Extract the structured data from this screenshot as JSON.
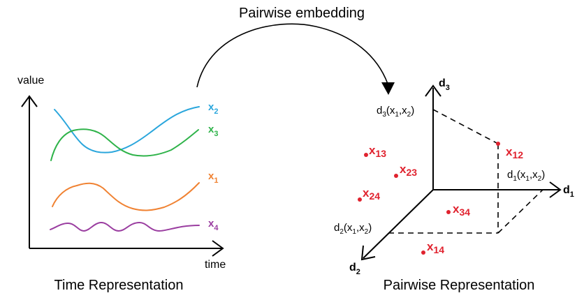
{
  "title": "Pairwise embedding",
  "colors": {
    "x1": "#f08232",
    "x2": "#2aa6dc",
    "x3": "#2fb34a",
    "x4": "#9a3da0",
    "point": "#e0222e",
    "axis": "#000000"
  },
  "left_panel": {
    "caption": "Time Representation",
    "y_axis_label": "value",
    "x_axis_label": "time",
    "series": [
      {
        "base": "x",
        "sub": "2"
      },
      {
        "base": "x",
        "sub": "3"
      },
      {
        "base": "x",
        "sub": "1"
      },
      {
        "base": "x",
        "sub": "4"
      }
    ]
  },
  "right_panel": {
    "caption": "Pairwise Representation",
    "axes": [
      {
        "base": "d",
        "sub": "1"
      },
      {
        "base": "d",
        "sub": "2"
      },
      {
        "base": "d",
        "sub": "3"
      }
    ],
    "projections": [
      {
        "fn": "d",
        "fnsub": "3",
        "a": "x",
        "asub": "1",
        "b": "x",
        "bsub": "2"
      },
      {
        "fn": "d",
        "fnsub": "1",
        "a": "x",
        "asub": "1",
        "b": "x",
        "bsub": "2"
      },
      {
        "fn": "d",
        "fnsub": "2",
        "a": "x",
        "asub": "1",
        "b": "x",
        "bsub": "2"
      }
    ],
    "points": [
      {
        "base": "x",
        "sub": "12"
      },
      {
        "base": "x",
        "sub": "13"
      },
      {
        "base": "x",
        "sub": "23"
      },
      {
        "base": "x",
        "sub": "24"
      },
      {
        "base": "x",
        "sub": "34"
      },
      {
        "base": "x",
        "sub": "14"
      }
    ]
  }
}
